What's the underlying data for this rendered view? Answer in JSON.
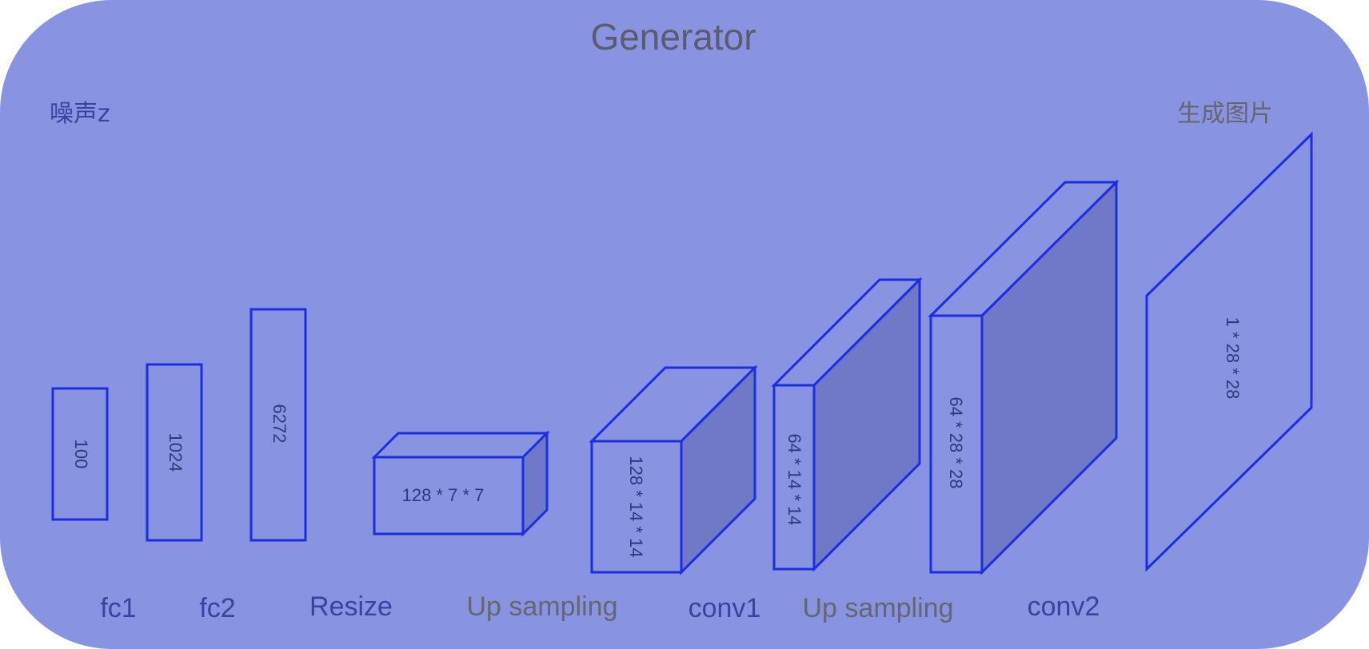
{
  "title": "Generator",
  "input_label": "噪声z",
  "output_label": "生成图片",
  "blocks": {
    "fc_input": {
      "dims": "100"
    },
    "fc1_out": {
      "dims": "1024"
    },
    "fc2_out": {
      "dims": "6272"
    },
    "resize_out": {
      "dims": "128 * 7 * 7"
    },
    "upsample1_out": {
      "dims": "128 * 14 * 14"
    },
    "conv1_out": {
      "dims": "64 * 14 * 14"
    },
    "upsample2_out": {
      "dims": "64 * 28 * 28"
    },
    "output_image": {
      "dims": "1 * 28 * 28"
    }
  },
  "stage_labels": {
    "fc1": "fc1",
    "fc2": "fc2",
    "resize": "Resize",
    "up_sampling_1": "Up sampling",
    "conv1": "conv1",
    "up_sampling_2": "Up sampling",
    "conv2": "conv2"
  },
  "colors": {
    "background": "#8893e2",
    "edge": "#1b2fe0",
    "side_face": "#6f79c8",
    "label_blue": "#3a44a0",
    "label_gray": "#66666e"
  }
}
